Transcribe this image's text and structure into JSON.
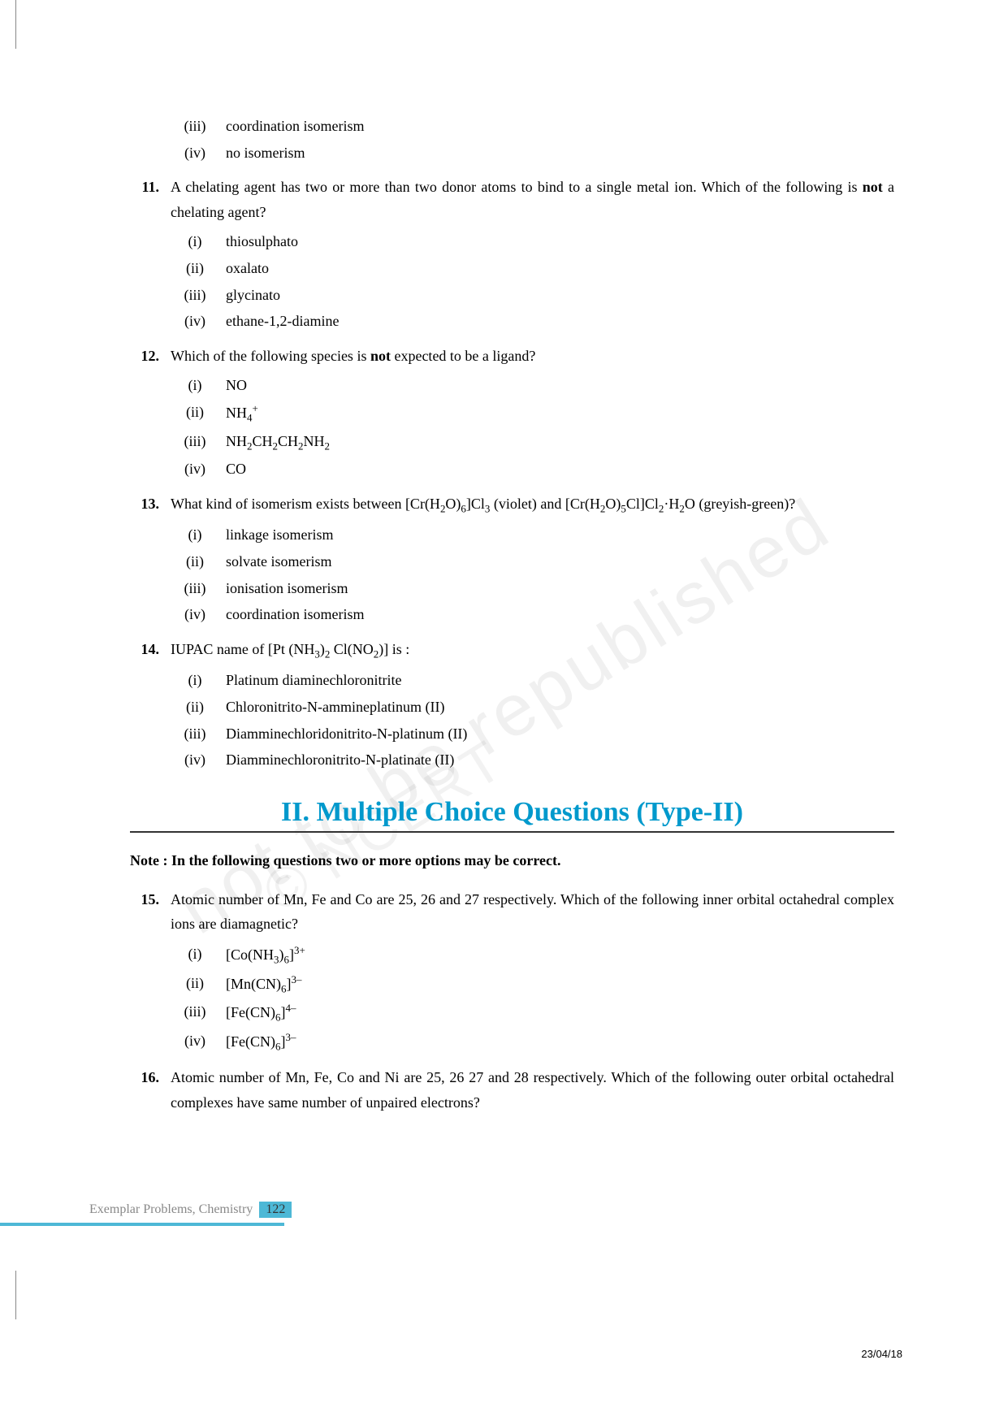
{
  "watermark1": "not to be republished",
  "watermark2": "© NCERT",
  "q_continued": {
    "options": [
      {
        "n": "(iii)",
        "t": "coordination isomerism"
      },
      {
        "n": "(iv)",
        "t": "no isomerism"
      }
    ]
  },
  "q11": {
    "num": "11.",
    "text_before": "A chelating agent has two or more than two donor atoms to bind to a single metal ion. Which of the following is ",
    "bold": "not",
    "text_after": " a chelating agent?",
    "options": [
      {
        "n": "(i)",
        "t": "thiosulphato"
      },
      {
        "n": "(ii)",
        "t": "oxalato"
      },
      {
        "n": "(iii)",
        "t": "glycinato"
      },
      {
        "n": "(iv)",
        "t": "ethane-1,2-diamine"
      }
    ]
  },
  "q12": {
    "num": "12.",
    "text_before": "Which of the following species is ",
    "bold": "not",
    "text_after": " expected to be a ligand?",
    "options": [
      {
        "n": "(i)",
        "html": "NO"
      },
      {
        "n": "(ii)",
        "html": "NH<sub>4</sub><sup>+</sup>"
      },
      {
        "n": "(iii)",
        "html": "NH<sub>2</sub>CH<sub>2</sub>CH<sub>2</sub>NH<sub>2</sub>"
      },
      {
        "n": "(iv)",
        "html": "CO"
      }
    ]
  },
  "q13": {
    "num": "13.",
    "text_html": "What kind of isomerism exists between [Cr(H<sub>2</sub>O)<sub>6</sub>]Cl<sub>3</sub> (violet) and [Cr(H<sub>2</sub>O)<sub>5</sub>Cl]Cl<sub>2</sub>·H<sub>2</sub>O (greyish-green)?",
    "options": [
      {
        "n": "(i)",
        "t": "linkage isomerism"
      },
      {
        "n": "(ii)",
        "t": "solvate isomerism"
      },
      {
        "n": "(iii)",
        "t": "ionisation isomerism"
      },
      {
        "n": "(iv)",
        "t": "coordination isomerism"
      }
    ]
  },
  "q14": {
    "num": "14.",
    "text_html": "IUPAC name of [Pt (NH<sub>3</sub>)<sub>2</sub> Cl(NO<sub>2</sub>)] is :",
    "options": [
      {
        "n": "(i)",
        "t": "Platinum diaminechloronitrite"
      },
      {
        "n": "(ii)",
        "t": "Chloronitrito-N-ammineplatinum (II)"
      },
      {
        "n": "(iii)",
        "t": "Diamminechloridonitrito-N-platinum (II)"
      },
      {
        "n": "(iv)",
        "t": "Diamminechloronitrito-N-platinate (II)"
      }
    ]
  },
  "section2": {
    "heading": "II. Multiple Choice Questions (Type-II)",
    "note": "Note : In the following questions two or more options may be correct."
  },
  "q15": {
    "num": "15.",
    "text": "Atomic number of Mn, Fe and Co are 25, 26 and 27 respectively. Which of the following inner orbital octahedral complex ions are diamagnetic?",
    "options": [
      {
        "n": "(i)",
        "html": "[Co(NH<sub>3</sub>)<sub>6</sub>]<sup>3+</sup>"
      },
      {
        "n": "(ii)",
        "html": "[Mn(CN)<sub>6</sub>]<sup>3–</sup>"
      },
      {
        "n": "(iii)",
        "html": "[Fe(CN)<sub>6</sub>]<sup>4–</sup>"
      },
      {
        "n": "(iv)",
        "html": "[Fe(CN)<sub>6</sub>]<sup>3–</sup>"
      }
    ]
  },
  "q16": {
    "num": "16.",
    "text": "Atomic number of Mn, Fe, Co and Ni are 25, 26 27 and 28 respectively. Which of the following outer orbital octahedral complexes have same number of unpaired electrons?"
  },
  "footer": {
    "title": "Exemplar Problems, Chemistry",
    "page": "122"
  },
  "date": "23/04/18"
}
